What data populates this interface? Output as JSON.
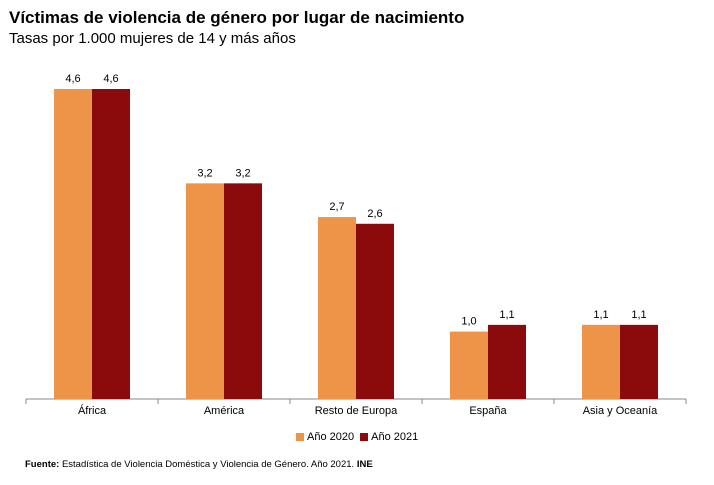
{
  "header": {
    "title": "Víctimas de violencia de género por lugar de nacimiento",
    "subtitle": "Tasas por 1.000 mujeres de 14 y más años"
  },
  "source": {
    "label": "Fuente:",
    "text": "Estadística de Violencia Doméstica y Violencia de Género. Año 2021.",
    "org": "INE"
  },
  "colors": {
    "series_2020": "#ED9448",
    "series_2021": "#8B0A0C"
  },
  "chart_data": {
    "type": "bar",
    "title": "Víctimas de violencia de género por lugar de nacimiento",
    "subtitle": "Tasas por 1.000 mujeres de 14 y más años",
    "categories": [
      "África",
      "América",
      "Resto de Europa",
      "España",
      "Asia y Oceanía"
    ],
    "series": [
      {
        "name": "Año 2020",
        "values": [
          4.6,
          3.2,
          2.7,
          1.0,
          1.1
        ],
        "labels": [
          "4,6",
          "3,2",
          "2,7",
          "1,0",
          "1,1"
        ]
      },
      {
        "name": "Año 2021",
        "values": [
          4.6,
          3.2,
          2.6,
          1.1,
          1.1
        ],
        "labels": [
          "4,6",
          "3,2",
          "2,6",
          "1,1",
          "1,1"
        ]
      }
    ],
    "ylim": [
      0,
      4.6
    ],
    "grid": false,
    "legend": "bottom-center"
  }
}
